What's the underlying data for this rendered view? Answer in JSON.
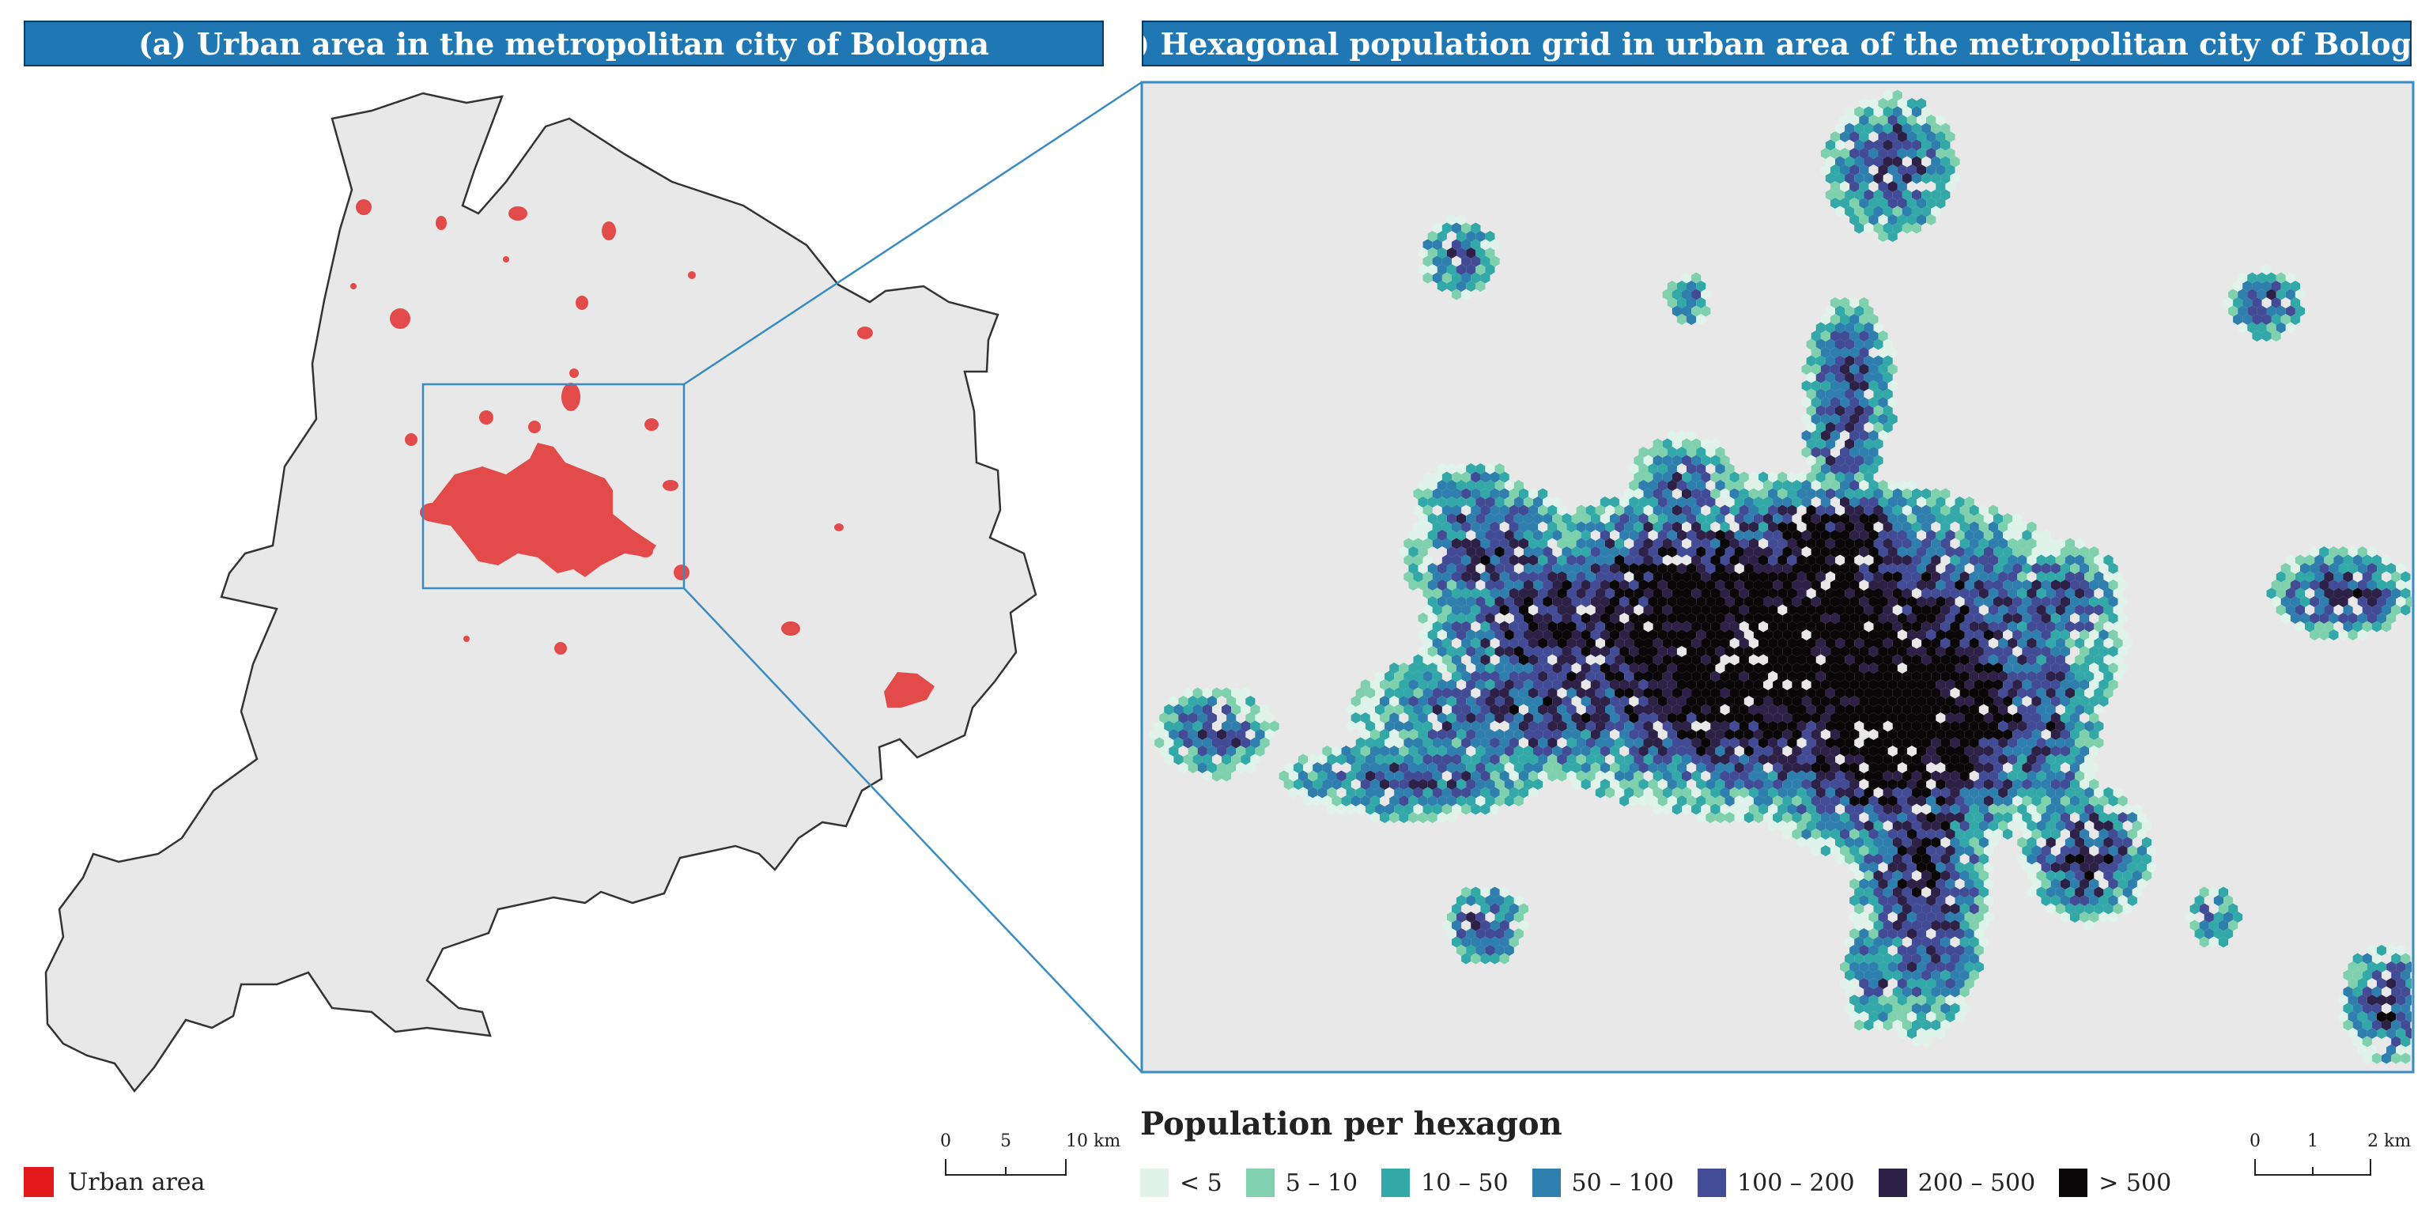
{
  "panel_a": {
    "title": "(a) Urban area in the metropolitan city of Bologna",
    "legend_label": "Urban area",
    "legend_color": "#e31a1c",
    "scale": {
      "ticks": [
        "0",
        "5",
        "10 km"
      ]
    }
  },
  "panel_b": {
    "title": "(b) Hexagonal population grid in urban area of the metropolitan city of Bologna",
    "legend_title": "Population per hexagon",
    "legend": [
      {
        "label": "< 5",
        "color": "#dff3ea"
      },
      {
        "label": "5 – 10",
        "color": "#7fd1ae"
      },
      {
        "label": "10 – 50",
        "color": "#33a8a8"
      },
      {
        "label": "50 – 100",
        "color": "#2f7fae"
      },
      {
        "label": "100 – 200",
        "color": "#424b95"
      },
      {
        "label": "200 – 500",
        "color": "#2e2148"
      },
      {
        "label": "> 500",
        "color": "#0a0708"
      }
    ],
    "scale": {
      "ticks": [
        "0",
        "1",
        "2 km"
      ]
    }
  }
}
